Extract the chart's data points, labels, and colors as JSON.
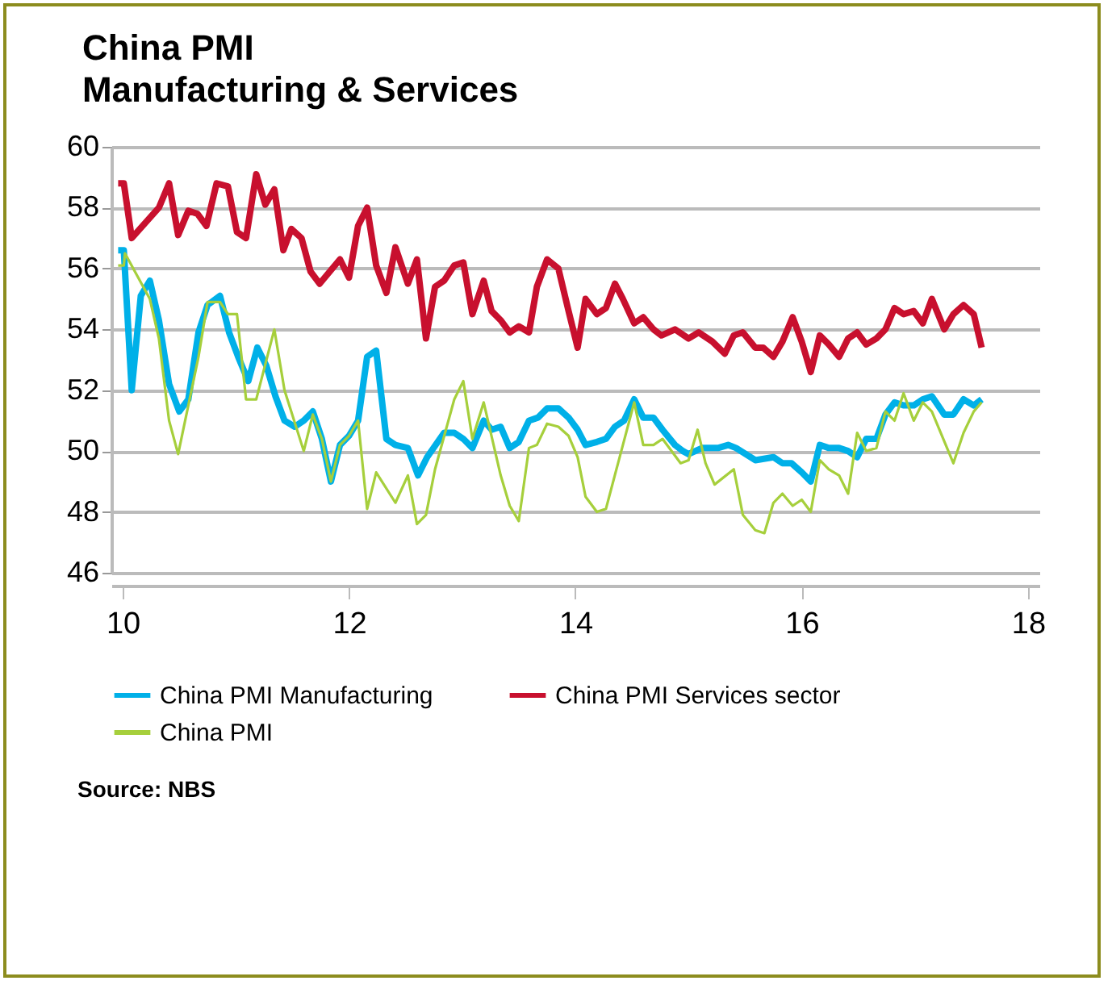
{
  "chart_data": {
    "type": "line",
    "title": "China PMI",
    "subtitle": "Manufacturing & Services",
    "xlim": [
      9.9,
      18.1
    ],
    "xticks": [
      10,
      12,
      14,
      16,
      18
    ],
    "ylim": [
      46,
      60
    ],
    "yticks": [
      46,
      48,
      50,
      52,
      54,
      56,
      58,
      60
    ],
    "grid": "y",
    "legend": "bottom",
    "annotations": [
      "Source: NBS"
    ],
    "series": [
      {
        "name": "China PMI Manufacturing",
        "color": "#00b0e8",
        "x": [
          9.96,
          10.01,
          10.08,
          10.16,
          10.24,
          10.32,
          10.41,
          10.5,
          10.58,
          10.67,
          10.75,
          10.86,
          10.94,
          11.02,
          11.11,
          11.19,
          11.27,
          11.35,
          11.43,
          11.52,
          11.6,
          11.68,
          11.76,
          11.84,
          11.92,
          12.0,
          12.08,
          12.16,
          12.24,
          12.33,
          12.41,
          12.52,
          12.61,
          12.69,
          12.84,
          12.93,
          13.01,
          13.09,
          13.19,
          13.26,
          13.34,
          13.42,
          13.5,
          13.59,
          13.67,
          13.75,
          13.85,
          13.94,
          14.02,
          14.09,
          14.19,
          14.27,
          14.35,
          14.43,
          14.52,
          14.6,
          14.69,
          14.77,
          14.88,
          14.95,
          15.0,
          15.12,
          15.26,
          15.35,
          15.42,
          15.59,
          15.75,
          15.83,
          15.91,
          16.0,
          16.08,
          16.16,
          16.24,
          16.33,
          16.41,
          16.49,
          16.57,
          16.66,
          16.74,
          16.82,
          16.9,
          16.99,
          17.07,
          17.15,
          17.26,
          17.34,
          17.43,
          17.52,
          17.59
        ],
        "values": [
          56.6,
          56.6,
          52.0,
          55.1,
          55.6,
          54.3,
          52.2,
          51.3,
          51.7,
          53.9,
          54.8,
          55.1,
          53.9,
          53.1,
          52.3,
          53.4,
          52.8,
          51.8,
          51.0,
          50.8,
          51.0,
          51.3,
          50.4,
          49.0,
          50.2,
          50.5,
          51.0,
          53.1,
          53.3,
          50.4,
          50.2,
          50.1,
          49.2,
          49.8,
          50.6,
          50.6,
          50.4,
          50.1,
          51.0,
          50.7,
          50.8,
          50.1,
          50.3,
          51.0,
          51.1,
          51.4,
          51.4,
          51.1,
          50.7,
          50.2,
          50.3,
          50.4,
          50.8,
          51.0,
          51.7,
          51.1,
          51.1,
          50.7,
          50.2,
          50.0,
          49.9,
          50.1,
          50.1,
          50.2,
          50.1,
          49.7,
          49.8,
          49.6,
          49.6,
          49.3,
          49.0,
          50.2,
          50.1,
          50.1,
          50.0,
          49.8,
          50.4,
          50.4,
          51.2,
          51.6,
          51.5,
          51.5,
          51.7,
          51.8,
          51.2,
          51.2,
          51.7,
          51.5,
          51.7
        ]
      },
      {
        "name": "China PMI Services sector",
        "color": "#c8102e",
        "x": [
          9.96,
          10.01,
          10.08,
          10.32,
          10.41,
          10.49,
          10.58,
          10.66,
          10.74,
          10.83,
          10.93,
          11.01,
          11.09,
          11.18,
          11.26,
          11.34,
          11.42,
          11.49,
          11.58,
          11.66,
          11.74,
          11.92,
          12.0,
          12.08,
          12.16,
          12.24,
          12.33,
          12.41,
          12.52,
          12.6,
          12.68,
          12.76,
          12.84,
          12.93,
          13.01,
          13.09,
          13.19,
          13.26,
          13.34,
          13.42,
          13.5,
          13.59,
          13.66,
          13.75,
          13.85,
          13.94,
          14.02,
          14.09,
          14.19,
          14.27,
          14.35,
          14.42,
          14.52,
          14.6,
          14.69,
          14.76,
          14.88,
          15.0,
          15.09,
          15.21,
          15.32,
          15.4,
          15.48,
          15.59,
          15.66,
          15.75,
          15.83,
          15.92,
          16.0,
          16.08,
          16.16,
          16.24,
          16.33,
          16.41,
          16.49,
          16.57,
          16.66,
          16.74,
          16.82,
          16.9,
          16.99,
          17.07,
          17.15,
          17.26,
          17.34,
          17.43,
          17.52,
          17.59
        ],
        "values": [
          58.8,
          58.8,
          57.0,
          58.0,
          58.8,
          57.1,
          57.9,
          57.8,
          57.4,
          58.8,
          58.7,
          57.2,
          57.0,
          59.1,
          58.1,
          58.6,
          56.6,
          57.3,
          57.0,
          55.9,
          55.5,
          56.3,
          55.7,
          57.4,
          58.0,
          56.1,
          55.2,
          56.7,
          55.5,
          56.3,
          53.7,
          55.4,
          55.6,
          56.1,
          56.2,
          54.5,
          55.6,
          54.6,
          54.3,
          53.9,
          54.1,
          53.9,
          55.4,
          56.3,
          56.0,
          54.6,
          53.4,
          55.0,
          54.5,
          54.7,
          55.5,
          55.0,
          54.2,
          54.4,
          54.0,
          53.8,
          54.0,
          53.7,
          53.9,
          53.6,
          53.2,
          53.8,
          53.9,
          53.4,
          53.4,
          53.1,
          53.6,
          54.4,
          53.6,
          52.6,
          53.8,
          53.5,
          53.1,
          53.7,
          53.9,
          53.5,
          53.7,
          54.0,
          54.7,
          54.5,
          54.6,
          54.2,
          55.0,
          54.0,
          54.5,
          54.8,
          54.5,
          53.4
        ]
      },
      {
        "name": "China PMI",
        "color": "#a6cf3c",
        "x": [
          9.96,
          10.01,
          10.02,
          10.24,
          10.32,
          10.41,
          10.49,
          10.58,
          10.67,
          10.75,
          10.86,
          10.93,
          11.01,
          11.09,
          11.18,
          11.34,
          11.43,
          11.6,
          11.68,
          11.76,
          11.84,
          11.92,
          12.0,
          12.08,
          12.16,
          12.24,
          12.41,
          12.52,
          12.6,
          12.68,
          12.76,
          12.93,
          13.01,
          13.09,
          13.19,
          13.34,
          13.42,
          13.5,
          13.59,
          13.66,
          13.75,
          13.85,
          13.94,
          14.02,
          14.09,
          14.19,
          14.27,
          14.52,
          14.6,
          14.69,
          14.77,
          14.93,
          15.0,
          15.08,
          15.15,
          15.23,
          15.4,
          15.48,
          15.59,
          15.67,
          15.75,
          15.83,
          15.92,
          16.0,
          16.08,
          16.16,
          16.24,
          16.33,
          16.41,
          16.49,
          16.57,
          16.66,
          16.74,
          16.82,
          16.9,
          16.99,
          17.07,
          17.15,
          17.34,
          17.43,
          17.52,
          17.59
        ],
        "values": [
          56.1,
          56.1,
          56.5,
          55.0,
          53.7,
          51.0,
          49.9,
          51.5,
          53.1,
          54.9,
          54.9,
          54.5,
          54.5,
          51.7,
          51.7,
          54.0,
          52.0,
          50.0,
          51.2,
          50.4,
          49.0,
          50.2,
          50.5,
          51.0,
          48.1,
          49.3,
          48.3,
          49.2,
          47.6,
          47.9,
          49.4,
          51.7,
          52.3,
          50.4,
          51.6,
          49.2,
          48.2,
          47.7,
          50.1,
          50.2,
          50.9,
          50.8,
          50.5,
          49.8,
          48.5,
          48.0,
          48.1,
          51.6,
          50.2,
          50.2,
          50.4,
          49.6,
          49.7,
          50.7,
          49.6,
          48.9,
          49.4,
          47.9,
          47.4,
          47.3,
          48.3,
          48.6,
          48.2,
          48.4,
          48.0,
          49.7,
          49.4,
          49.2,
          48.6,
          50.6,
          50.0,
          50.1,
          51.3,
          51.0,
          51.9,
          51.0,
          51.6,
          51.3,
          49.6,
          50.6,
          51.3,
          51.6
        ]
      }
    ]
  }
}
